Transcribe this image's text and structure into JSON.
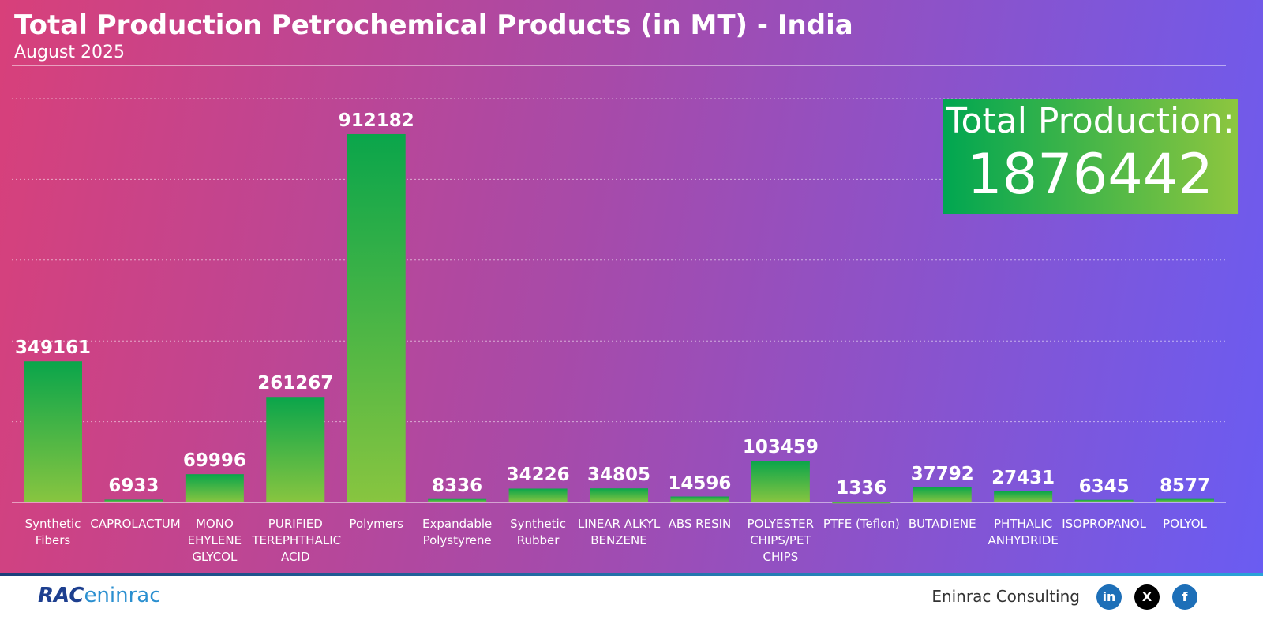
{
  "chart_data": {
    "type": "bar",
    "title": "Total Production Petrochemical Products (in MT) - India",
    "subtitle": "August 2025",
    "categories": [
      "Synthetic Fibers",
      "CAPROLACTUM",
      "MONO EHYLENE GLYCOL",
      "PURIFIED TEREPHTHALIC ACID",
      "Polymers",
      "Expandable Polystyrene",
      "Synthetic Rubber",
      "LINEAR ALKYL BENZENE",
      "ABS RESIN",
      "POLYESTER CHIPS/PET CHIPS",
      "PTFE (Teflon)",
      "BUTADIENE",
      "PHTHALIC ANHYDRIDE",
      "ISOPROPANOL",
      "POLYOL"
    ],
    "values": [
      349161,
      6933,
      69996,
      261267,
      912182,
      8336,
      34226,
      34805,
      14596,
      103459,
      1336,
      37792,
      27431,
      6345,
      8577
    ],
    "colors": [
      "#0aa54b",
      "#88c540"
    ],
    "ylim": [
      0,
      1000000
    ],
    "yticks": [
      0,
      200000,
      400000,
      600000,
      800000,
      1000000
    ],
    "grid": true,
    "total_label": "Total Production:",
    "total_value": 1876442
  },
  "footer": {
    "logo_mark": "RAC",
    "logo_text": "eninrac",
    "company": "Eninrac Consulting",
    "social": [
      "in",
      "X",
      "f"
    ]
  }
}
